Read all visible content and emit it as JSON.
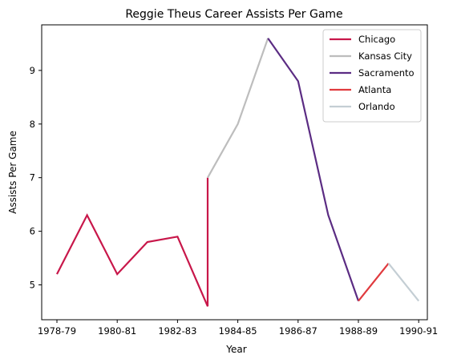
{
  "chart_data": {
    "type": "line",
    "title": "Reggie Theus Career Assists Per Game",
    "xlabel": "Year",
    "ylabel": "Assists Per Game",
    "x_ticks": [
      "1978-79",
      "1980-81",
      "1982-83",
      "1984-85",
      "1986-87",
      "1988-89",
      "1990-91"
    ],
    "y_ticks": [
      "5",
      "6",
      "7",
      "8",
      "9"
    ],
    "ylim": [
      4.35,
      9.85
    ],
    "grid": false,
    "legend_position": "top-right",
    "series": [
      {
        "name": "Chicago",
        "color": "#c8174a",
        "x": [
          1978,
          1979,
          1980,
          1981,
          1982,
          1983,
          1983
        ],
        "y": [
          5.2,
          6.3,
          5.2,
          5.8,
          5.9,
          4.6,
          7.0
        ]
      },
      {
        "name": "Kansas City",
        "color": "#bdbdbd",
        "x": [
          1983,
          1984,
          1985
        ],
        "y": [
          7.0,
          8.0,
          9.6
        ]
      },
      {
        "name": "Sacramento",
        "color": "#5b2c83",
        "x": [
          1985,
          1986,
          1987,
          1988
        ],
        "y": [
          9.6,
          8.8,
          6.3,
          4.7
        ]
      },
      {
        "name": "Atlanta",
        "color": "#e03a3e",
        "x": [
          1988,
          1989
        ],
        "y": [
          4.7,
          5.4
        ]
      },
      {
        "name": "Orlando",
        "color": "#c4ced4",
        "x": [
          1989,
          1990
        ],
        "y": [
          5.4,
          4.7
        ]
      }
    ]
  }
}
